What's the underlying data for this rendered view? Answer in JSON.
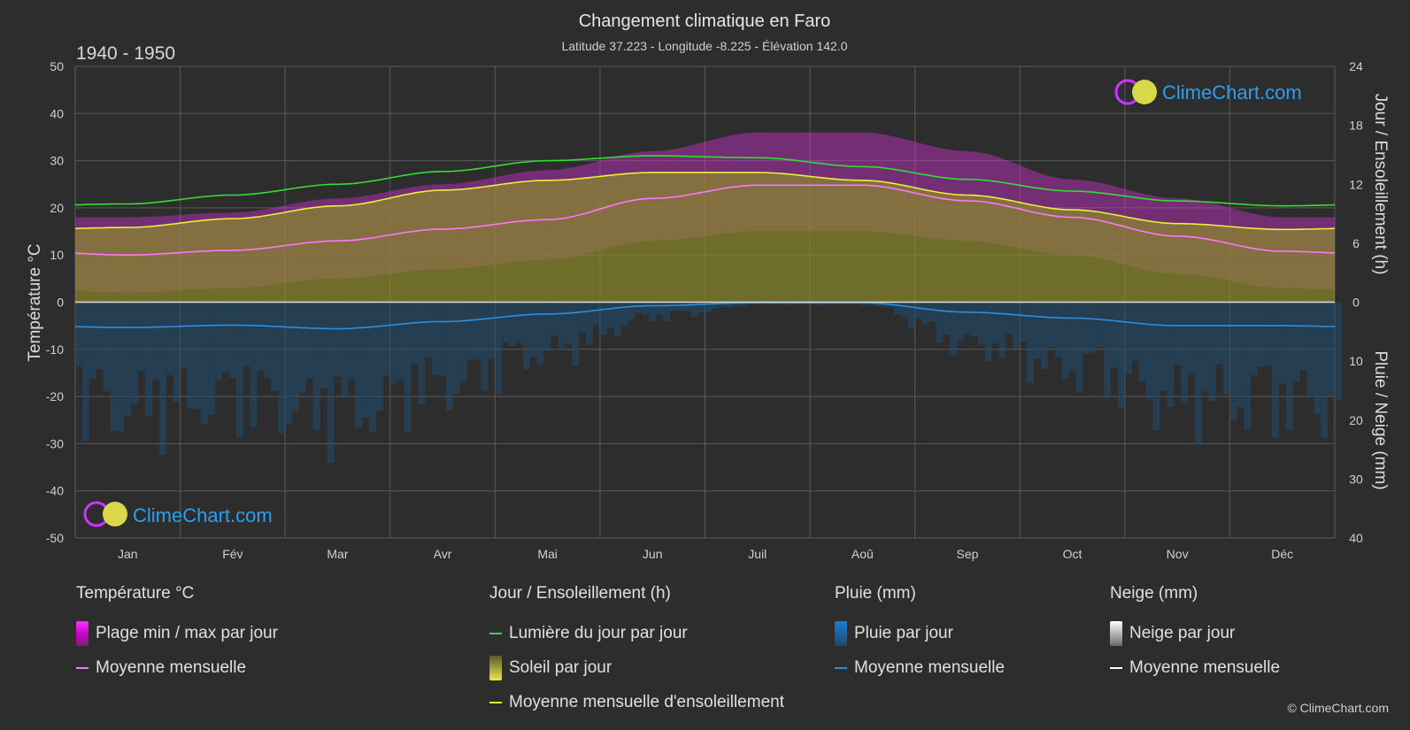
{
  "chart_data": {
    "type": "area",
    "title": "Changement climatique en Faro",
    "subtitle": "Latitude 37.223 - Longitude -8.225 - Élévation 142.0",
    "period": "1940 - 1950",
    "months": [
      "Jan",
      "Fév",
      "Mar",
      "Avr",
      "Mai",
      "Jun",
      "Juil",
      "Aoû",
      "Sep",
      "Oct",
      "Nov",
      "Déc"
    ],
    "left_axis": {
      "label": "Température °C",
      "range": [
        -50,
        50
      ],
      "ticks": [
        "50",
        "40",
        "30",
        "20",
        "10",
        "0",
        "-10",
        "-20",
        "-30",
        "-40",
        "-50"
      ]
    },
    "right_axis_top": {
      "label": "Jour / Ensoleillement (h)",
      "range": [
        0,
        24
      ],
      "ticks": [
        "24",
        "18",
        "12",
        "6",
        "0"
      ]
    },
    "right_axis_bottom": {
      "label": "Pluie / Neige (mm)",
      "range": [
        0,
        40
      ],
      "ticks": [
        "10",
        "20",
        "30",
        "40"
      ]
    },
    "series": {
      "temp_mean": [
        10.0,
        11.0,
        13.0,
        15.5,
        17.5,
        22.0,
        24.8,
        24.8,
        21.5,
        18.0,
        14.0,
        10.8
      ],
      "temp_max_band": [
        18,
        19,
        22,
        25,
        28,
        32,
        36,
        36,
        32,
        26,
        22,
        18
      ],
      "temp_min_band": [
        2,
        3,
        5,
        7,
        9,
        13,
        15,
        15,
        13,
        10,
        6,
        3
      ],
      "daylight_h": [
        10.0,
        10.9,
        12.0,
        13.3,
        14.4,
        14.9,
        14.7,
        13.8,
        12.5,
        11.3,
        10.3,
        9.8
      ],
      "sunshine_h": [
        7.6,
        8.5,
        9.8,
        11.4,
        12.4,
        13.2,
        13.2,
        12.4,
        10.9,
        9.4,
        8.0,
        7.4
      ],
      "rain_mean_mm": [
        4.3,
        3.9,
        4.5,
        3.3,
        2.0,
        0.6,
        0.1,
        0.1,
        1.7,
        2.7,
        4.0,
        4.0
      ]
    },
    "colors": {
      "temp_mean": "#ff77ff",
      "temp_band": "#cc33cc",
      "daylight": "#33dd33",
      "sunshine": "#eded3a",
      "sunshine_fill": "#8a8a2a",
      "rain": "#2a8fe0",
      "rain_fill": "#1f4c70",
      "snow": "#ffffff",
      "grid": "#5a5a5a",
      "zero_line": "#dddddd"
    }
  },
  "watermark": {
    "text": "ClimeChart.com"
  },
  "legend": {
    "temperature": {
      "title": "Température °C",
      "items": [
        "Plage min / max par jour",
        "Moyenne mensuelle"
      ]
    },
    "sun": {
      "title": "Jour / Ensoleillement (h)",
      "items": [
        "Lumière du jour par jour",
        "Soleil par jour",
        "Moyenne mensuelle d'ensoleillement"
      ]
    },
    "rain": {
      "title": "Pluie (mm)",
      "items": [
        "Pluie par jour",
        "Moyenne mensuelle"
      ]
    },
    "snow": {
      "title": "Neige (mm)",
      "items": [
        "Neige par jour",
        "Moyenne mensuelle"
      ]
    }
  },
  "copyright": "© ClimeChart.com"
}
